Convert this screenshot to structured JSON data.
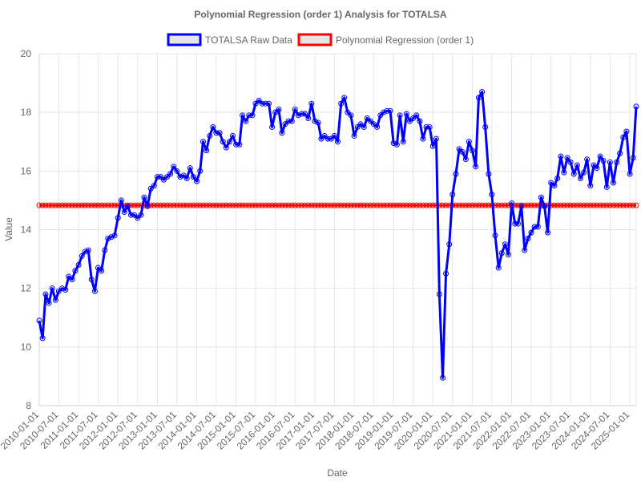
{
  "chart_data": {
    "type": "line",
    "title": "Polynomial Regression (order 1) Analysis for TOTALSA",
    "xlabel": "Date",
    "ylabel": "Value",
    "ylim": [
      8,
      20
    ],
    "yticks": [
      8,
      10,
      12,
      14,
      16,
      18,
      20
    ],
    "xlim": [
      "2010-01-01",
      "2025-03-01"
    ],
    "xticks": [
      "2010-01-01",
      "2010-07-01",
      "2011-01-01",
      "2011-07-01",
      "2012-01-01",
      "2012-07-01",
      "2013-01-01",
      "2013-07-01",
      "2014-01-01",
      "2014-07-01",
      "2015-01-01",
      "2015-07-01",
      "2016-01-01",
      "2016-07-01",
      "2017-01-01",
      "2017-07-01",
      "2018-01-01",
      "2018-07-01",
      "2019-01-01",
      "2019-07-01",
      "2020-01-01",
      "2020-07-01",
      "2021-01-01",
      "2021-07-01",
      "2022-01-01",
      "2022-07-01",
      "2023-01-01",
      "2023-07-01",
      "2024-01-01",
      "2024-07-01",
      "2025-01-01"
    ],
    "grid": true,
    "legend_position": "top",
    "series": [
      {
        "name": "TOTALSA Raw Data",
        "color": "#0000ff",
        "x": [
          "2010-01-01",
          "2010-02-01",
          "2010-03-01",
          "2010-04-01",
          "2010-05-01",
          "2010-06-01",
          "2010-07-01",
          "2010-08-01",
          "2010-09-01",
          "2010-10-01",
          "2010-11-01",
          "2010-12-01",
          "2011-01-01",
          "2011-02-01",
          "2011-03-01",
          "2011-04-01",
          "2011-05-01",
          "2011-06-01",
          "2011-07-01",
          "2011-08-01",
          "2011-09-01",
          "2011-10-01",
          "2011-11-01",
          "2011-12-01",
          "2012-01-01",
          "2012-02-01",
          "2012-03-01",
          "2012-04-01",
          "2012-05-01",
          "2012-06-01",
          "2012-07-01",
          "2012-08-01",
          "2012-09-01",
          "2012-10-01",
          "2012-11-01",
          "2012-12-01",
          "2013-01-01",
          "2013-02-01",
          "2013-03-01",
          "2013-04-01",
          "2013-05-01",
          "2013-06-01",
          "2013-07-01",
          "2013-08-01",
          "2013-09-01",
          "2013-10-01",
          "2013-11-01",
          "2013-12-01",
          "2014-01-01",
          "2014-02-01",
          "2014-03-01",
          "2014-04-01",
          "2014-05-01",
          "2014-06-01",
          "2014-07-01",
          "2014-08-01",
          "2014-09-01",
          "2014-10-01",
          "2014-11-01",
          "2014-12-01",
          "2015-01-01",
          "2015-02-01",
          "2015-03-01",
          "2015-04-01",
          "2015-05-01",
          "2015-06-01",
          "2015-07-01",
          "2015-08-01",
          "2015-09-01",
          "2015-10-01",
          "2015-11-01",
          "2015-12-01",
          "2016-01-01",
          "2016-02-01",
          "2016-03-01",
          "2016-04-01",
          "2016-05-01",
          "2016-06-01",
          "2016-07-01",
          "2016-08-01",
          "2016-09-01",
          "2016-10-01",
          "2016-11-01",
          "2016-12-01",
          "2017-01-01",
          "2017-02-01",
          "2017-03-01",
          "2017-04-01",
          "2017-05-01",
          "2017-06-01",
          "2017-07-01",
          "2017-08-01",
          "2017-09-01",
          "2017-10-01",
          "2017-11-01",
          "2017-12-01",
          "2018-01-01",
          "2018-02-01",
          "2018-03-01",
          "2018-04-01",
          "2018-05-01",
          "2018-06-01",
          "2018-07-01",
          "2018-08-01",
          "2018-09-01",
          "2018-10-01",
          "2018-11-01",
          "2018-12-01",
          "2019-01-01",
          "2019-02-01",
          "2019-03-01",
          "2019-04-01",
          "2019-05-01",
          "2019-06-01",
          "2019-07-01",
          "2019-08-01",
          "2019-09-01",
          "2019-10-01",
          "2019-11-01",
          "2019-12-01",
          "2020-01-01",
          "2020-02-01",
          "2020-03-01",
          "2020-04-01",
          "2020-05-01",
          "2020-06-01",
          "2020-07-01",
          "2020-08-01",
          "2020-09-01",
          "2020-10-01",
          "2020-11-01",
          "2020-12-01",
          "2021-01-01",
          "2021-02-01",
          "2021-03-01",
          "2021-04-01",
          "2021-05-01",
          "2021-06-01",
          "2021-07-01",
          "2021-08-01",
          "2021-09-01",
          "2021-10-01",
          "2021-11-01",
          "2021-12-01",
          "2022-01-01",
          "2022-02-01",
          "2022-03-01",
          "2022-04-01",
          "2022-05-01",
          "2022-06-01",
          "2022-07-01",
          "2022-08-01",
          "2022-09-01",
          "2022-10-01",
          "2022-11-01",
          "2022-12-01",
          "2023-01-01",
          "2023-02-01",
          "2023-03-01",
          "2023-04-01",
          "2023-05-01",
          "2023-06-01",
          "2023-07-01",
          "2023-08-01",
          "2023-09-01",
          "2023-10-01",
          "2023-11-01",
          "2023-12-01",
          "2024-01-01",
          "2024-02-01",
          "2024-03-01",
          "2024-04-01",
          "2024-05-01",
          "2024-06-01",
          "2024-07-01",
          "2024-08-01",
          "2024-09-01",
          "2024-10-01",
          "2024-11-01",
          "2024-12-01",
          "2025-01-01",
          "2025-02-01",
          "2025-03-01"
        ],
        "values": [
          10.9,
          10.3,
          11.8,
          11.5,
          12.0,
          11.6,
          11.9,
          12.0,
          11.95,
          12.4,
          12.3,
          12.6,
          12.8,
          13.1,
          13.25,
          13.3,
          12.3,
          11.9,
          12.7,
          12.6,
          13.3,
          13.7,
          13.75,
          13.8,
          14.4,
          15.0,
          14.6,
          14.8,
          14.5,
          14.5,
          14.4,
          14.5,
          15.1,
          14.8,
          15.4,
          15.5,
          15.8,
          15.8,
          15.7,
          15.8,
          15.9,
          16.15,
          16.0,
          15.8,
          15.85,
          15.75,
          16.1,
          15.8,
          15.65,
          16.0,
          17.0,
          16.7,
          17.2,
          17.5,
          17.3,
          17.3,
          17.0,
          16.8,
          17.0,
          17.2,
          16.9,
          16.9,
          17.9,
          17.7,
          17.9,
          17.9,
          18.3,
          18.4,
          18.3,
          18.3,
          18.3,
          17.5,
          18.0,
          18.1,
          17.3,
          17.6,
          17.7,
          17.7,
          18.1,
          17.9,
          17.95,
          17.95,
          17.8,
          18.3,
          17.7,
          17.65,
          17.1,
          17.2,
          17.1,
          17.1,
          17.2,
          17.0,
          18.3,
          18.5,
          18.0,
          17.9,
          17.2,
          17.5,
          17.6,
          17.5,
          17.8,
          17.7,
          17.6,
          17.5,
          17.9,
          18.0,
          18.05,
          18.05,
          16.95,
          16.9,
          17.9,
          17.0,
          17.95,
          17.7,
          17.8,
          17.9,
          17.7,
          17.1,
          17.5,
          17.5,
          16.85,
          17.1,
          11.8,
          8.95,
          12.5,
          13.5,
          15.2,
          15.9,
          16.75,
          16.65,
          16.4,
          17.0,
          16.7,
          16.15,
          18.5,
          18.7,
          17.5,
          15.9,
          15.2,
          13.8,
          12.7,
          13.2,
          13.5,
          13.15,
          14.9,
          14.2,
          14.2,
          14.8,
          13.3,
          13.7,
          13.9,
          14.1,
          14.1,
          15.1,
          14.8,
          13.9,
          15.6,
          15.5,
          15.75,
          16.5,
          15.95,
          16.45,
          16.3,
          15.9,
          16.2,
          15.75,
          15.95,
          16.4,
          15.5,
          16.2,
          16.1,
          16.5,
          16.35,
          15.45,
          16.3,
          15.6,
          16.3,
          16.6,
          17.15,
          17.35,
          15.9,
          16.45,
          18.2
        ]
      },
      {
        "name": "Polynomial Regression (order 1)",
        "color": "#ff0000",
        "constant_value": 14.83
      }
    ]
  }
}
